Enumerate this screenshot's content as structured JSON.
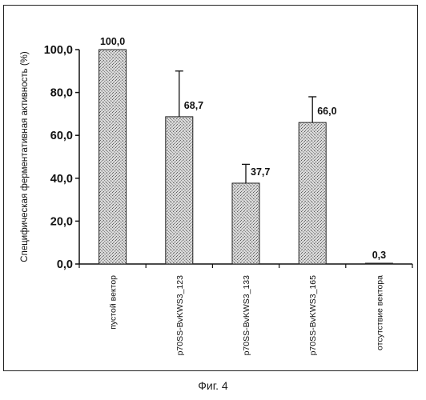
{
  "chart_data": {
    "type": "bar",
    "ylabel": "Специфическая ферментативная активность (%)",
    "xlabel": "",
    "categories": [
      "пустой вектор",
      "p70SS-BvKWS3_123",
      "p70SS-BvKWS3_133",
      "p70SS-BvKWS3_165",
      "отсутствие вектора"
    ],
    "values": [
      100.0,
      68.7,
      37.7,
      66.0,
      0.3
    ],
    "value_labels": [
      "100,0",
      "68,7",
      "37,7",
      "66,0",
      "0,3"
    ],
    "error_upper": [
      null,
      90.0,
      46.5,
      78.0,
      null
    ],
    "ylim": [
      0,
      100
    ],
    "yticks": [
      0,
      20,
      40,
      60,
      80,
      100
    ],
    "ytick_labels": [
      "0,0",
      "20,0",
      "40,0",
      "60,0",
      "80,0",
      "100,0"
    ],
    "grid": false,
    "bar_fill": "stippled gray"
  },
  "caption": "Фиг. 4",
  "colors": {
    "bar_dark": "#3a3a3a",
    "bar_light": "#e6e6e6",
    "axis": "#111111"
  }
}
